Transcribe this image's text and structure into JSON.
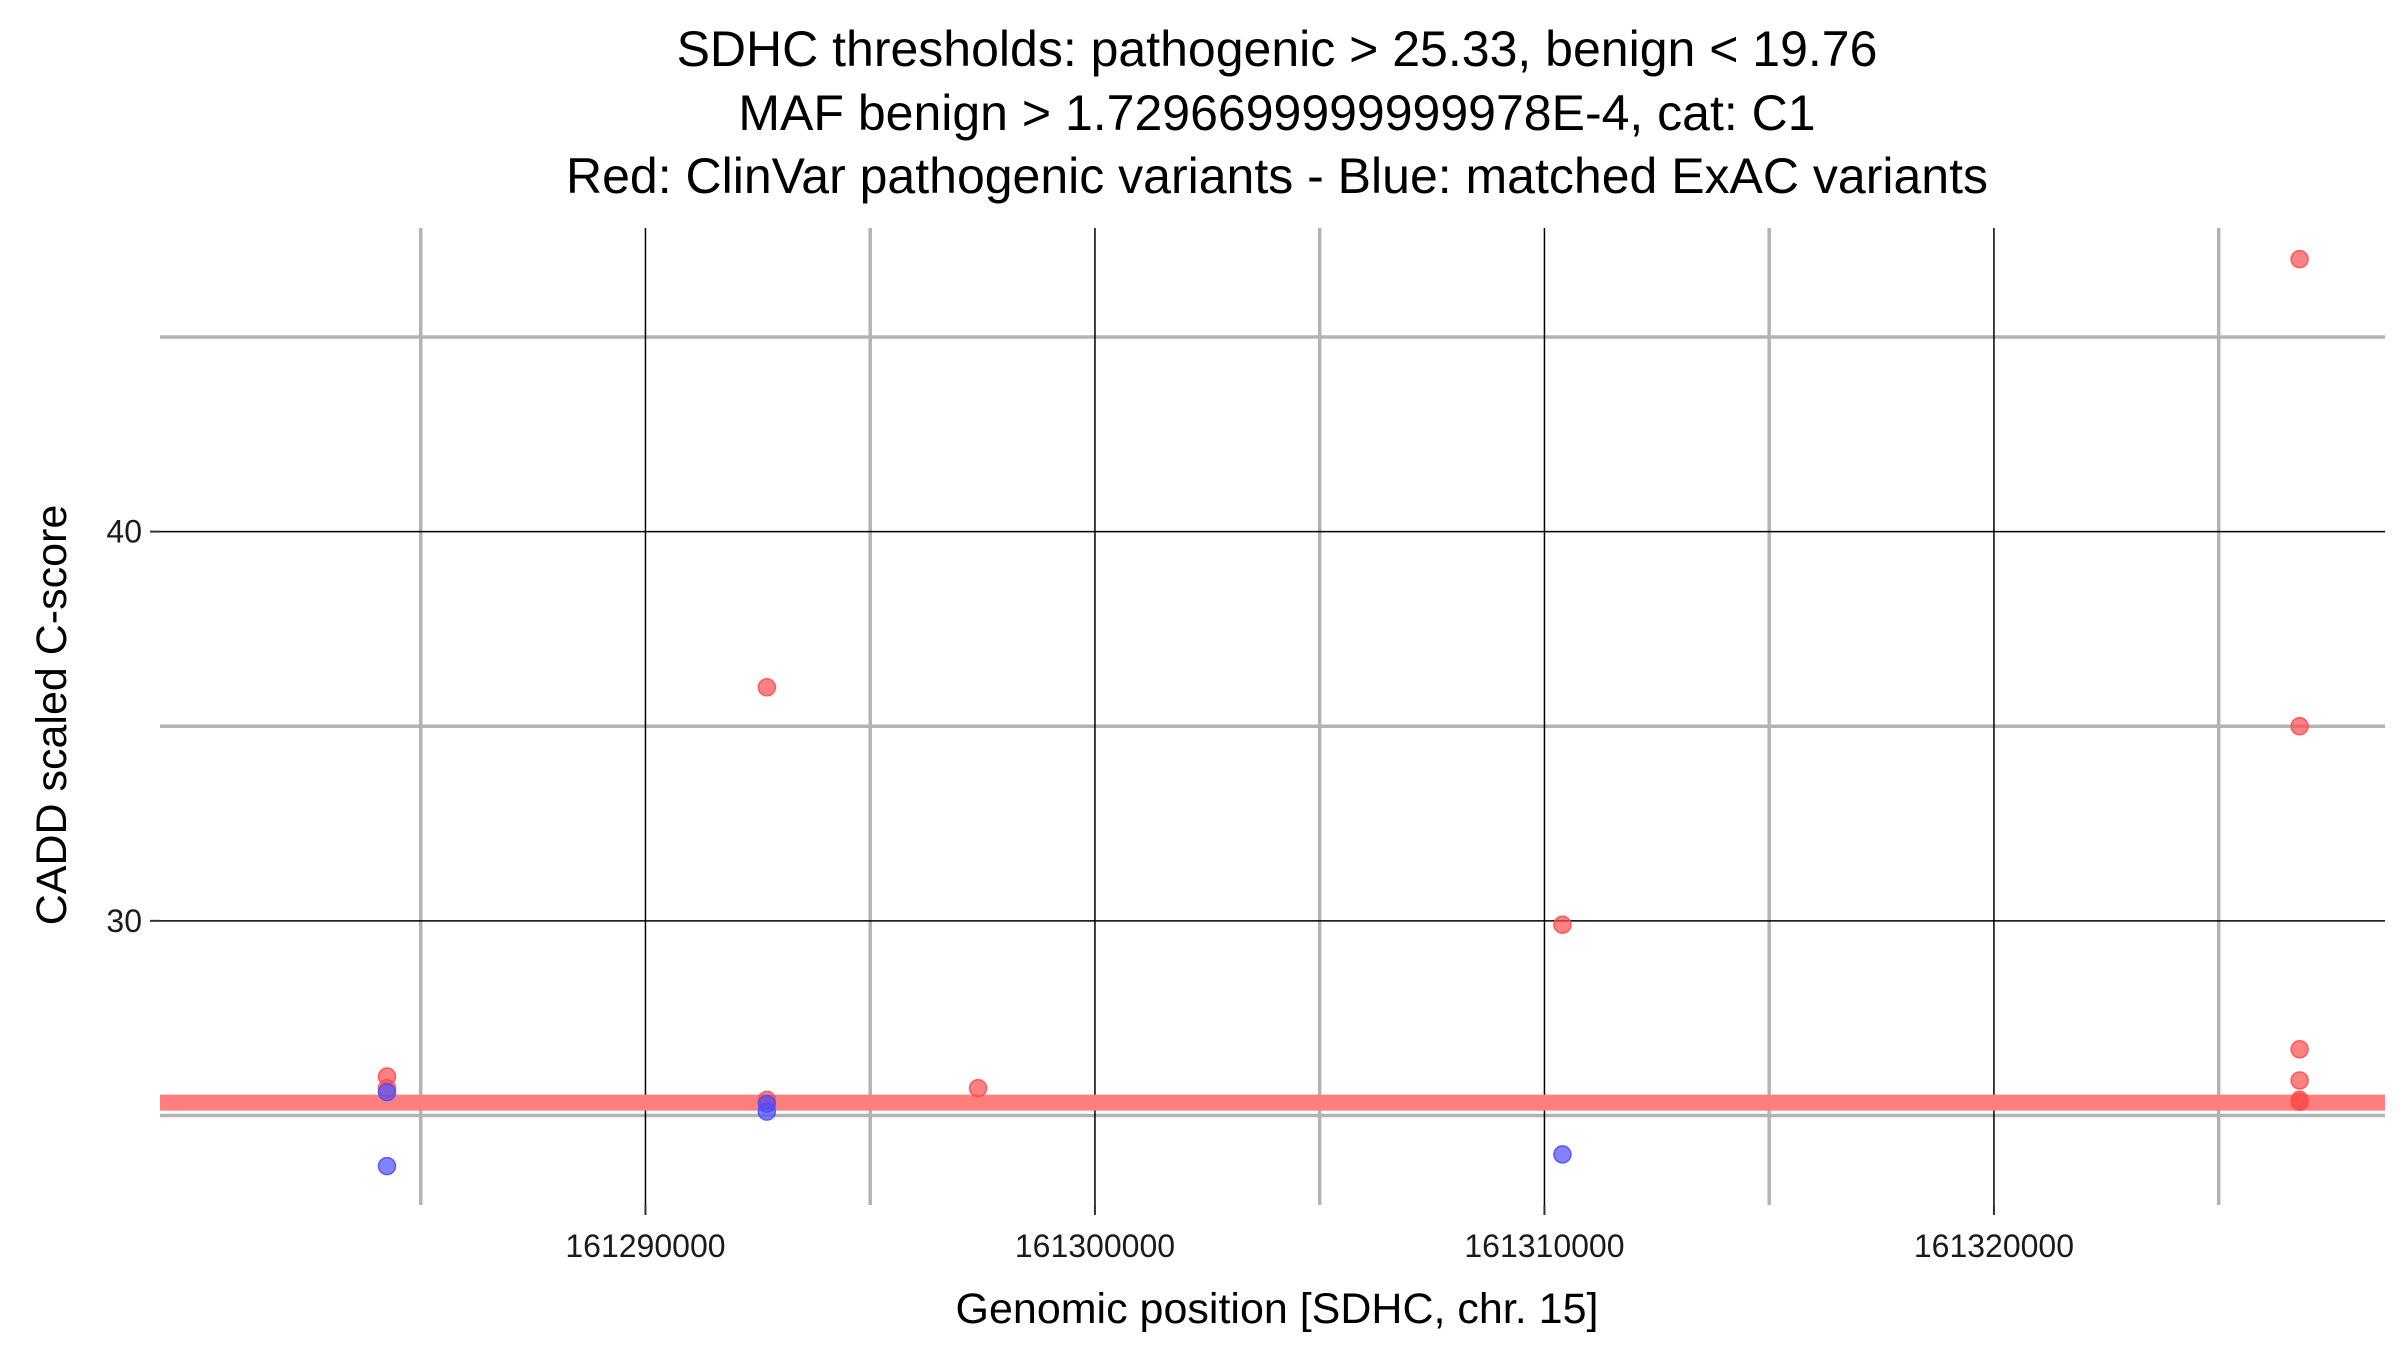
{
  "chart_data": {
    "type": "scatter",
    "title_lines": [
      "SDHC thresholds: pathogenic > 25.33, benign < 19.76",
      "MAF benign > 1.7296699999999978E-4, cat: C1",
      "Red: ClinVar pathogenic variants - Blue: matched ExAC variants"
    ],
    "xlabel": "Genomic position [SDHC, chr. 15]",
    "ylabel": "CADD scaled C-score",
    "xlim": [
      161279200,
      161328700
    ],
    "ylim": [
      22.7,
      47.8
    ],
    "x_major_ticks": [
      161290000,
      161300000,
      161310000,
      161320000
    ],
    "x_tick_labels": [
      "161290000",
      "161300000",
      "161310000",
      "161320000"
    ],
    "x_minor_ticks": [
      161285000,
      161295000,
      161305000,
      161315000,
      161325000
    ],
    "y_major_ticks": [
      30,
      40
    ],
    "y_tick_labels": [
      "30",
      "40"
    ],
    "y_minor_ticks": [
      25,
      35,
      45
    ],
    "threshold_line": {
      "y": 25.33,
      "color": "#ff7f7f"
    },
    "colors": {
      "pathogenic": "#ff4d4d",
      "matched": "#4d4dff",
      "major_grid": "#000000",
      "minor_grid": "#b3b3b3"
    },
    "series": [
      {
        "key": "pathogenic",
        "points": [
          {
            "x": 161284250,
            "y": 26.0
          },
          {
            "x": 161284250,
            "y": 25.7
          },
          {
            "x": 161292700,
            "y": 36.0
          },
          {
            "x": 161292700,
            "y": 25.4
          },
          {
            "x": 161297400,
            "y": 25.7
          },
          {
            "x": 161310400,
            "y": 29.9
          },
          {
            "x": 161326800,
            "y": 47.0
          },
          {
            "x": 161326800,
            "y": 35.0
          },
          {
            "x": 161326800,
            "y": 26.7
          },
          {
            "x": 161326800,
            "y": 25.9
          },
          {
            "x": 161326800,
            "y": 25.4
          },
          {
            "x": 161326800,
            "y": 25.35
          }
        ]
      },
      {
        "key": "matched",
        "points": [
          {
            "x": 161284250,
            "y": 25.6
          },
          {
            "x": 161284250,
            "y": 23.7
          },
          {
            "x": 161292700,
            "y": 25.3
          },
          {
            "x": 161292700,
            "y": 25.1
          },
          {
            "x": 161310400,
            "y": 24.0
          }
        ]
      }
    ]
  }
}
